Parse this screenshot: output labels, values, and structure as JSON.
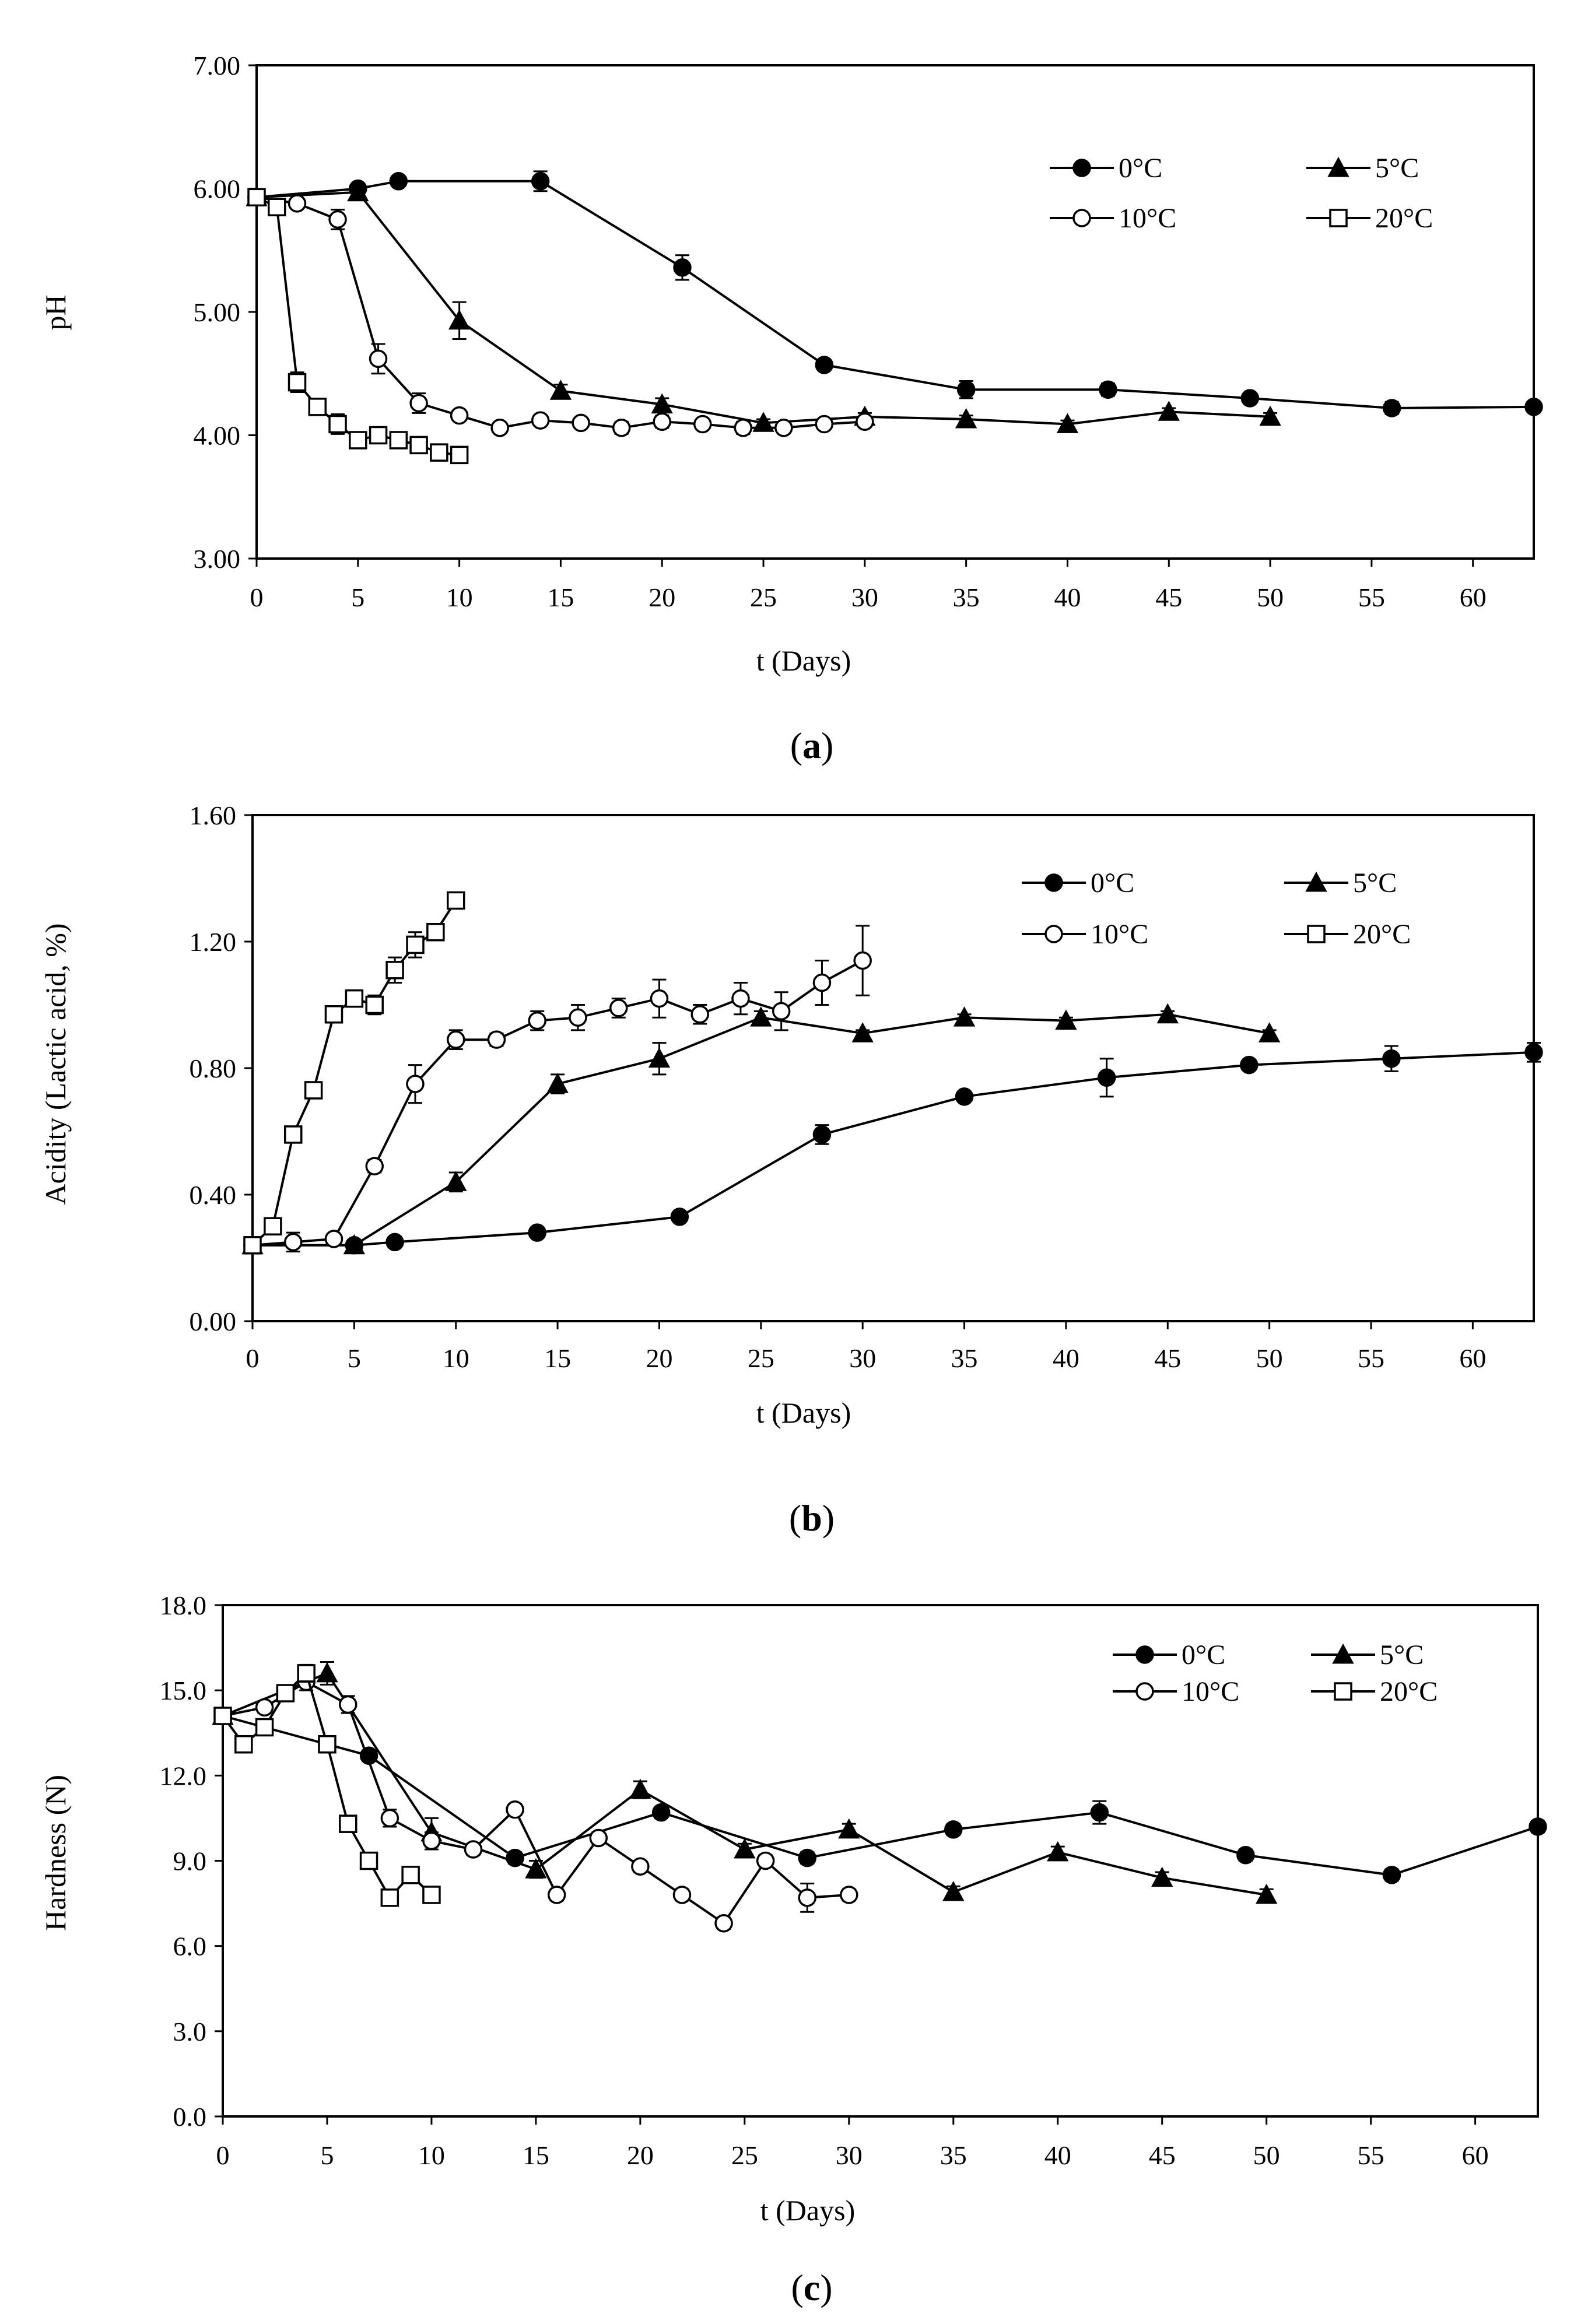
{
  "chart_data": [
    {
      "id": "a",
      "type": "line",
      "caption": "a",
      "xlabel": "t (Days)",
      "ylabel": "pH",
      "xlim": [
        0,
        63
      ],
      "ylim": [
        3.0,
        7.0
      ],
      "xticks": [
        0,
        5,
        10,
        15,
        20,
        25,
        30,
        35,
        40,
        45,
        50,
        55,
        60
      ],
      "xtick_labels": [
        "0",
        "5",
        "10",
        "15",
        "20",
        "25",
        "30",
        "35",
        "40",
        "45",
        "50",
        "55",
        "60"
      ],
      "yticks": [
        3,
        4,
        5,
        6,
        7
      ],
      "ytick_labels": [
        "3.00",
        "4.00",
        "5.00",
        "6.00",
        "7.00"
      ],
      "legend_columns": 2,
      "legend_position": "top-right",
      "series": [
        {
          "name": "0°C",
          "marker": "circle-filled",
          "x": [
            0,
            5,
            7,
            14,
            21,
            28,
            35,
            42,
            49,
            56,
            63
          ],
          "y": [
            5.93,
            6.0,
            6.06,
            6.06,
            5.36,
            4.57,
            4.37,
            4.37,
            4.3,
            4.22,
            4.23
          ],
          "err": [
            0,
            0,
            0.03,
            0.08,
            0.1,
            0.04,
            0.07,
            0.05,
            0.03,
            0.05,
            0.03
          ]
        },
        {
          "name": "5°C",
          "marker": "triangle-filled",
          "x": [
            0,
            5,
            10,
            15,
            20,
            25,
            30,
            35,
            40,
            45,
            50
          ],
          "y": [
            5.93,
            5.97,
            4.93,
            4.36,
            4.25,
            4.1,
            4.15,
            4.13,
            4.09,
            4.19,
            4.15
          ],
          "err": [
            0,
            0.02,
            0.15,
            0.05,
            0.05,
            0.03,
            0.03,
            0.03,
            0.03,
            0.03,
            0.03
          ]
        },
        {
          "name": "10°C",
          "marker": "circle-open",
          "x": [
            0,
            2,
            4,
            6,
            8,
            10,
            12,
            14,
            16,
            18,
            20,
            22,
            24,
            26,
            28,
            30
          ],
          "y": [
            5.93,
            5.88,
            5.75,
            4.62,
            4.26,
            4.16,
            4.06,
            4.12,
            4.1,
            4.06,
            4.11,
            4.09,
            4.06,
            4.06,
            4.09,
            4.11
          ],
          "err": [
            0,
            0.03,
            0.08,
            0.12,
            0.08,
            0.03,
            0.04,
            0.03,
            0.03,
            0.05,
            0.05,
            0.03,
            0.05,
            0.03,
            0.03,
            0.03
          ]
        },
        {
          "name": "20°C",
          "marker": "square-open",
          "x": [
            0,
            1,
            2,
            3,
            4,
            5,
            6,
            7,
            8,
            9,
            10
          ],
          "y": [
            5.93,
            5.85,
            4.43,
            4.23,
            4.09,
            3.96,
            4.0,
            3.96,
            3.92,
            3.86,
            3.84
          ],
          "err": [
            0,
            0.03,
            0.08,
            0.05,
            0.08,
            0.03,
            0.03,
            0.03,
            0.03,
            0.03,
            0.03
          ]
        }
      ]
    },
    {
      "id": "b",
      "type": "line",
      "caption": "b",
      "xlabel": "t (Days)",
      "ylabel": "Acidity (Lactic acid, %)",
      "xlim": [
        0,
        63
      ],
      "ylim": [
        0.0,
        1.6
      ],
      "xticks": [
        0,
        5,
        10,
        15,
        20,
        25,
        30,
        35,
        40,
        45,
        50,
        55,
        60
      ],
      "xtick_labels": [
        "0",
        "5",
        "10",
        "15",
        "20",
        "25",
        "30",
        "35",
        "40",
        "45",
        "50",
        "55",
        "60"
      ],
      "yticks": [
        0,
        0.4,
        0.8,
        1.2,
        1.6
      ],
      "ytick_labels": [
        "0.00",
        "0.40",
        "0.80",
        "1.20",
        "1.60"
      ],
      "legend_columns": 2,
      "legend_position": "top-right",
      "series": [
        {
          "name": "0°C",
          "marker": "circle-filled",
          "x": [
            0,
            5,
            7,
            14,
            21,
            28,
            35,
            42,
            49,
            56,
            63
          ],
          "y": [
            0.24,
            0.24,
            0.25,
            0.28,
            0.33,
            0.59,
            0.71,
            0.77,
            0.81,
            0.83,
            0.85
          ],
          "err": [
            0,
            0,
            0,
            0.01,
            0.01,
            0.03,
            0.01,
            0.06,
            0.01,
            0.04,
            0.03
          ]
        },
        {
          "name": "5°C",
          "marker": "triangle-filled",
          "x": [
            0,
            5,
            10,
            15,
            20,
            25,
            30,
            35,
            40,
            45,
            50
          ],
          "y": [
            0.24,
            0.24,
            0.44,
            0.75,
            0.83,
            0.96,
            0.91,
            0.96,
            0.95,
            0.97,
            0.91
          ],
          "err": [
            0,
            0,
            0.03,
            0.03,
            0.05,
            0.02,
            0.01,
            0.01,
            0.01,
            0.01,
            0.01
          ]
        },
        {
          "name": "10°C",
          "marker": "circle-open",
          "x": [
            0,
            2,
            4,
            6,
            8,
            10,
            12,
            14,
            16,
            18,
            20,
            22,
            24,
            26,
            28,
            30
          ],
          "y": [
            0.24,
            0.25,
            0.26,
            0.49,
            0.75,
            0.89,
            0.89,
            0.95,
            0.96,
            0.99,
            1.02,
            0.97,
            1.02,
            0.98,
            1.07,
            1.14
          ],
          "err": [
            0,
            0.03,
            0.01,
            0.02,
            0.06,
            0.03,
            0.02,
            0.03,
            0.04,
            0.03,
            0.06,
            0.03,
            0.05,
            0.06,
            0.07,
            0.11
          ]
        },
        {
          "name": "20°C",
          "marker": "square-open",
          "x": [
            0,
            1,
            2,
            3,
            4,
            5,
            6,
            7,
            8,
            9,
            10
          ],
          "y": [
            0.24,
            0.3,
            0.59,
            0.73,
            0.97,
            1.02,
            1.0,
            1.11,
            1.19,
            1.23,
            1.33
          ],
          "err": [
            0,
            0.01,
            0.01,
            0.01,
            0.02,
            0.02,
            0.03,
            0.04,
            0.04,
            0.02,
            0.02
          ]
        }
      ]
    },
    {
      "id": "c",
      "type": "line",
      "caption": "c",
      "xlabel": "t (Days)",
      "ylabel": "Hardness (N)",
      "xlim": [
        0,
        63
      ],
      "ylim": [
        0.0,
        18.0
      ],
      "xticks": [
        0,
        5,
        10,
        15,
        20,
        25,
        30,
        35,
        40,
        45,
        50,
        55,
        60
      ],
      "xtick_labels": [
        "0",
        "5",
        "10",
        "15",
        "20",
        "25",
        "30",
        "35",
        "40",
        "45",
        "50",
        "55",
        "60"
      ],
      "yticks": [
        0,
        3,
        6,
        9,
        12,
        15,
        18
      ],
      "ytick_labels": [
        "0.0",
        "3.0",
        "6.0",
        "9.0",
        "12.0",
        "15.0",
        "18.0"
      ],
      "legend_columns": 2,
      "legend_position": "top-right",
      "series": [
        {
          "name": "0°C",
          "marker": "circle-filled",
          "x": [
            0,
            5,
            7,
            14,
            21,
            28,
            35,
            42,
            49,
            56,
            63
          ],
          "y": [
            14.1,
            13.1,
            12.7,
            9.1,
            10.7,
            9.1,
            10.1,
            10.7,
            9.2,
            8.5,
            10.2
          ],
          "err": [
            0,
            0,
            0,
            0.2,
            0.2,
            0.2,
            0.2,
            0.4,
            0.2,
            0.2,
            0.2
          ]
        },
        {
          "name": "5°C",
          "marker": "triangle-filled",
          "x": [
            0,
            5,
            10,
            15,
            20,
            25,
            30,
            35,
            40,
            45,
            50
          ],
          "y": [
            14.1,
            15.6,
            10.0,
            8.7,
            11.5,
            9.4,
            10.1,
            7.9,
            9.3,
            8.4,
            7.8
          ],
          "err": [
            0,
            0.4,
            0.5,
            0.3,
            0.3,
            0.2,
            0.2,
            0.2,
            0.2,
            0.2,
            0.2
          ]
        },
        {
          "name": "10°C",
          "marker": "circle-open",
          "x": [
            0,
            2,
            4,
            6,
            8,
            10,
            12,
            14,
            16,
            18,
            20,
            22,
            24,
            26,
            28,
            30
          ],
          "y": [
            14.1,
            14.4,
            15.3,
            14.5,
            10.5,
            9.7,
            9.4,
            10.8,
            7.8,
            9.8,
            8.8,
            7.8,
            6.8,
            9.0,
            7.7,
            7.8
          ],
          "err": [
            0,
            0.2,
            0.3,
            0.3,
            0.3,
            0.3,
            0.2,
            0.2,
            0.2,
            0.2,
            0.2,
            0.2,
            0.2,
            0.2,
            0.5,
            0.2
          ]
        },
        {
          "name": "20°C",
          "marker": "square-open",
          "x": [
            0,
            1,
            2,
            3,
            4,
            5,
            6,
            7,
            8,
            9,
            10
          ],
          "y": [
            14.1,
            13.1,
            13.7,
            14.9,
            15.6,
            13.1,
            10.3,
            9.0,
            7.7,
            8.5,
            7.8
          ],
          "err": [
            0,
            0.2,
            0.2,
            0.2,
            0.3,
            0.2,
            0.2,
            0.2,
            0.2,
            0.2,
            0.2
          ]
        }
      ]
    }
  ]
}
